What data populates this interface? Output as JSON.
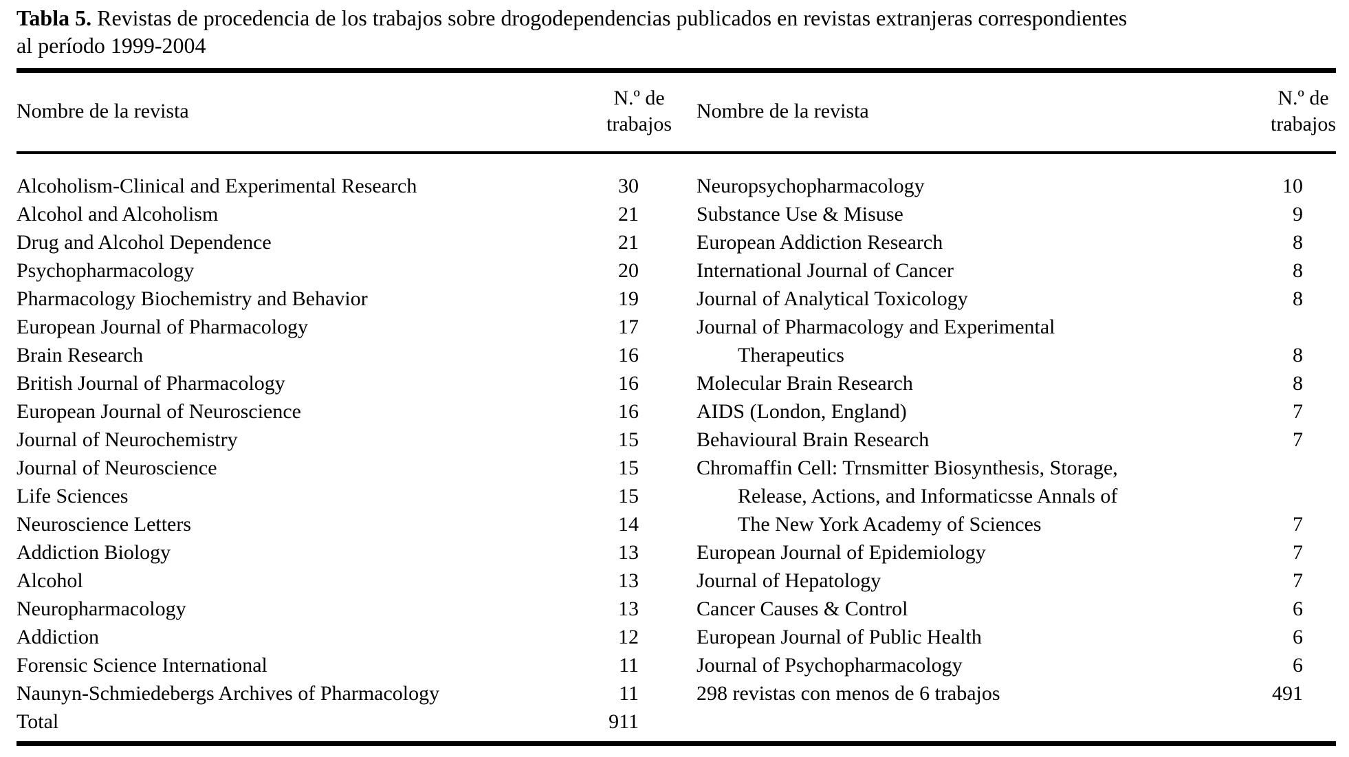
{
  "title": {
    "label_bold": "Tabla 5.",
    "line1_rest": " Revistas de procedencia de los trabajos sobre drogodependencias publicados en revistas extranjeras correspondientes",
    "line2": "al período 1999-2004"
  },
  "table": {
    "columns": {
      "name_header": "Nombre de la revista",
      "count_header_line1": "N.º de",
      "count_header_line2": "trabajos"
    },
    "left_rows": [
      {
        "lines": [
          "Alcoholism-Clinical and Experimental Research"
        ],
        "count": "30"
      },
      {
        "lines": [
          "Alcohol and Alcoholism"
        ],
        "count": "21"
      },
      {
        "lines": [
          "Drug and Alcohol Dependence"
        ],
        "count": "21"
      },
      {
        "lines": [
          "Psychopharmacology"
        ],
        "count": "20"
      },
      {
        "lines": [
          "Pharmacology Biochemistry and Behavior"
        ],
        "count": "19"
      },
      {
        "lines": [
          "European Journal of Pharmacology"
        ],
        "count": "17"
      },
      {
        "lines": [
          "Brain Research"
        ],
        "count": "16"
      },
      {
        "lines": [
          "British Journal of Pharmacology"
        ],
        "count": "16"
      },
      {
        "lines": [
          "European Journal of Neuroscience"
        ],
        "count": "16"
      },
      {
        "lines": [
          "Journal of Neurochemistry"
        ],
        "count": "15"
      },
      {
        "lines": [
          "Journal of Neuroscience"
        ],
        "count": "15"
      },
      {
        "lines": [
          "Life Sciences"
        ],
        "count": "15"
      },
      {
        "lines": [
          "Neuroscience Letters"
        ],
        "count": "14"
      },
      {
        "lines": [
          "Addiction Biology"
        ],
        "count": "13"
      },
      {
        "lines": [
          "Alcohol"
        ],
        "count": "13"
      },
      {
        "lines": [
          "Neuropharmacology"
        ],
        "count": "13"
      },
      {
        "lines": [
          "Addiction"
        ],
        "count": "12"
      },
      {
        "lines": [
          "Forensic Science International"
        ],
        "count": "11"
      },
      {
        "lines": [
          "Naunyn-Schmiedebergs Archives of Pharmacology"
        ],
        "count": "11"
      },
      {
        "lines": [
          "Total"
        ],
        "count": "911"
      }
    ],
    "right_rows": [
      {
        "lines": [
          "Neuropsychopharmacology"
        ],
        "count": "10"
      },
      {
        "lines": [
          "Substance Use & Misuse"
        ],
        "count": "9"
      },
      {
        "lines": [
          "European Addiction Research"
        ],
        "count": "8"
      },
      {
        "lines": [
          "International Journal of Cancer"
        ],
        "count": "8"
      },
      {
        "lines": [
          "Journal of Analytical Toxicology"
        ],
        "count": "8"
      },
      {
        "lines": [
          "Journal of Pharmacology and Experimental",
          "Therapeutics"
        ],
        "count": "8"
      },
      {
        "lines": [
          "Molecular Brain Research"
        ],
        "count": "8"
      },
      {
        "lines": [
          "AIDS (London, England)"
        ],
        "count": "7"
      },
      {
        "lines": [
          "Behavioural Brain Research"
        ],
        "count": "7"
      },
      {
        "lines": [
          "Chromaffin Cell: Trnsmitter Biosynthesis, Storage,",
          "Release, Actions, and Informaticsse Annals of",
          "The New York Academy of Sciences"
        ],
        "count": "7"
      },
      {
        "lines": [
          "European Journal of Epidemiology"
        ],
        "count": "7"
      },
      {
        "lines": [
          "Journal of Hepatology"
        ],
        "count": "7"
      },
      {
        "lines": [
          "Cancer Causes & Control"
        ],
        "count": "6"
      },
      {
        "lines": [
          "European Journal of Public Health"
        ],
        "count": "6"
      },
      {
        "lines": [
          "Journal of Psychopharmacology"
        ],
        "count": "6"
      },
      {
        "lines": [
          "298 revistas con menos de 6 trabajos"
        ],
        "count": "491"
      }
    ]
  },
  "colors": {
    "background": "#ffffff",
    "text": "#000000",
    "rule": "#000000"
  }
}
